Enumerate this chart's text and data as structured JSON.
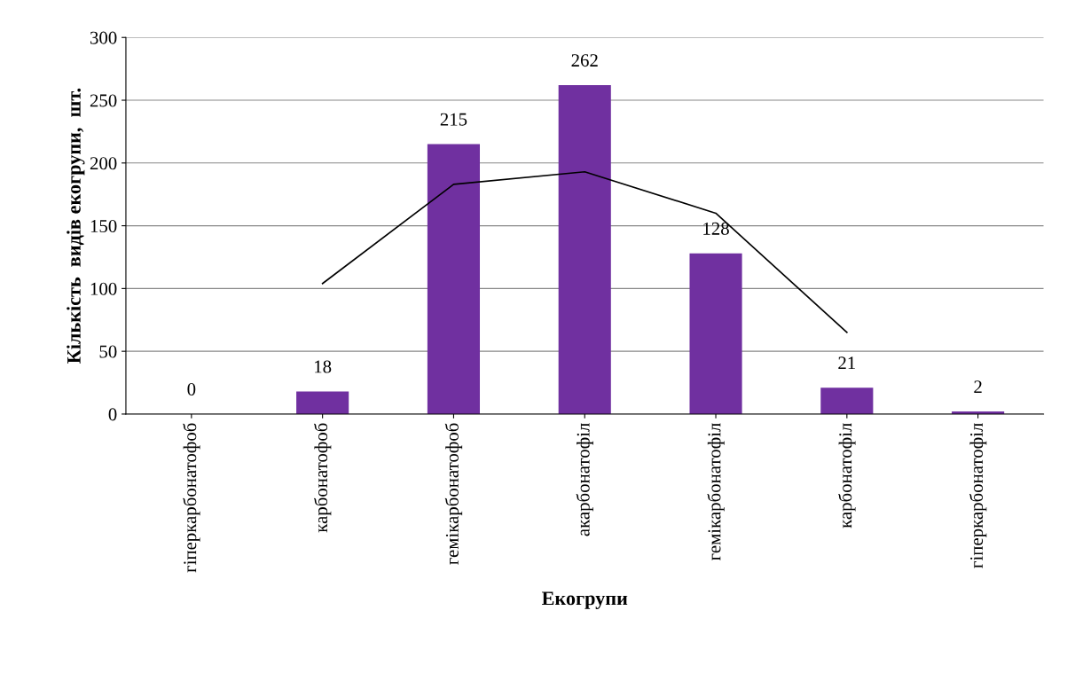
{
  "chart_data": {
    "type": "bar",
    "xlabel": "Екогрупи",
    "ylabel": "Кількість  видів екогрупи,  шт.",
    "categories": [
      "гіперкарбонатофоб",
      "карбонатофоб",
      "гемікарбонатофоб",
      "акарбонатофіл",
      "гемікарбонатофіл",
      "карбонатофіл",
      "гіперкарбонатофіл"
    ],
    "series": [
      {
        "color": "#7030a0",
        "values": [
          0,
          18,
          215,
          262,
          128,
          21,
          2
        ],
        "value_labels": [
          "0",
          "18",
          "215",
          "262",
          "128",
          "21",
          "2"
        ]
      },
      {
        "type": "line",
        "color": "#000000",
        "values": [
          null,
          104,
          183,
          193,
          160,
          65,
          null
        ]
      }
    ],
    "ylim": [
      0,
      300
    ],
    "yticks": [
      0,
      50,
      100,
      150,
      200,
      250,
      300
    ],
    "grid": "y",
    "legend": false
  }
}
